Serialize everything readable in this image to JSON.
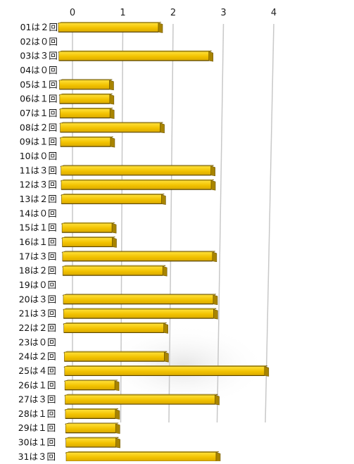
{
  "chart_data": {
    "type": "bar",
    "orientation": "horizontal",
    "style": "3d-perspective",
    "categories": [
      "01は２回",
      "02は０回",
      "03は３回",
      "04は０回",
      "05は１回",
      "06は１回",
      "07は１回",
      "08は２回",
      "09は１回",
      "10は０回",
      "11は３回",
      "12は３回",
      "13は２回",
      "14は０回",
      "15は１回",
      "16は１回",
      "17は３回",
      "18は２回",
      "19は０回",
      "20は３回",
      "21は３回",
      "22は２回",
      "23は０回",
      "24は２回",
      "25は４回",
      "26は１回",
      "27は３回",
      "28は１回",
      "29は１回",
      "30は１回",
      "31は３回"
    ],
    "values": [
      2,
      0,
      3,
      0,
      1,
      1,
      1,
      2,
      1,
      0,
      3,
      3,
      2,
      0,
      1,
      1,
      3,
      2,
      0,
      3,
      3,
      2,
      0,
      2,
      4,
      1,
      3,
      1,
      1,
      1,
      3
    ],
    "x_ticks": [
      "0",
      "1",
      "2",
      "3",
      "4"
    ],
    "xlim": [
      0,
      4
    ],
    "grid": true,
    "legend": "none",
    "bar_color": "#f2c200",
    "bar_top_color": "#ffe24a",
    "bar_side_color": "#a88400",
    "bar_outline_color": "#6e5500",
    "grid_color": "#c8c8c8"
  }
}
